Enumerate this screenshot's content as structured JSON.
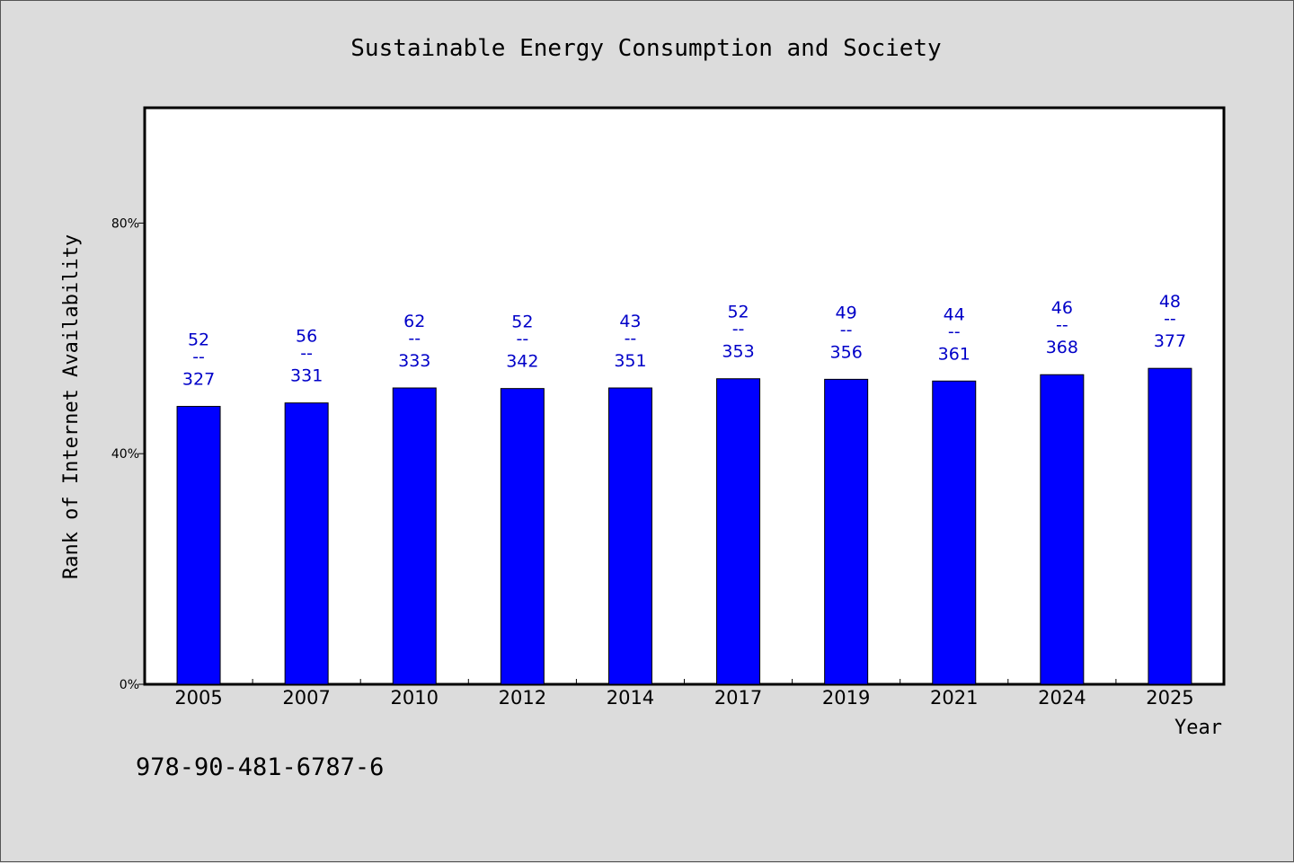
{
  "chart_data": {
    "type": "bar",
    "title": "Sustainable Energy Consumption and Society",
    "xlabel": "Year",
    "ylabel": "Rank of Internet Availability",
    "ylim": [
      0,
      100
    ],
    "yticks": [
      0,
      40,
      80
    ],
    "ytick_labels": [
      "0%",
      "40%",
      "80%"
    ],
    "grid": false,
    "categories": [
      "2005",
      "2007",
      "2010",
      "2012",
      "2014",
      "2017",
      "2019",
      "2021",
      "2024",
      "2025"
    ],
    "values": [
      48.2,
      48.8,
      51.4,
      51.3,
      51.4,
      53.0,
      52.9,
      52.6,
      53.7,
      54.8
    ],
    "top_labels": [
      "52",
      "56",
      "62",
      "52",
      "43",
      "52",
      "49",
      "44",
      "46",
      "48"
    ],
    "bottom_labels": [
      "327",
      "331",
      "333",
      "342",
      "351",
      "353",
      "356",
      "361",
      "368",
      "377"
    ],
    "label_separator": "--",
    "bar_color": "#0000ff",
    "label_color": "#0000c8"
  },
  "footer_text": "978-90-481-6787-6"
}
